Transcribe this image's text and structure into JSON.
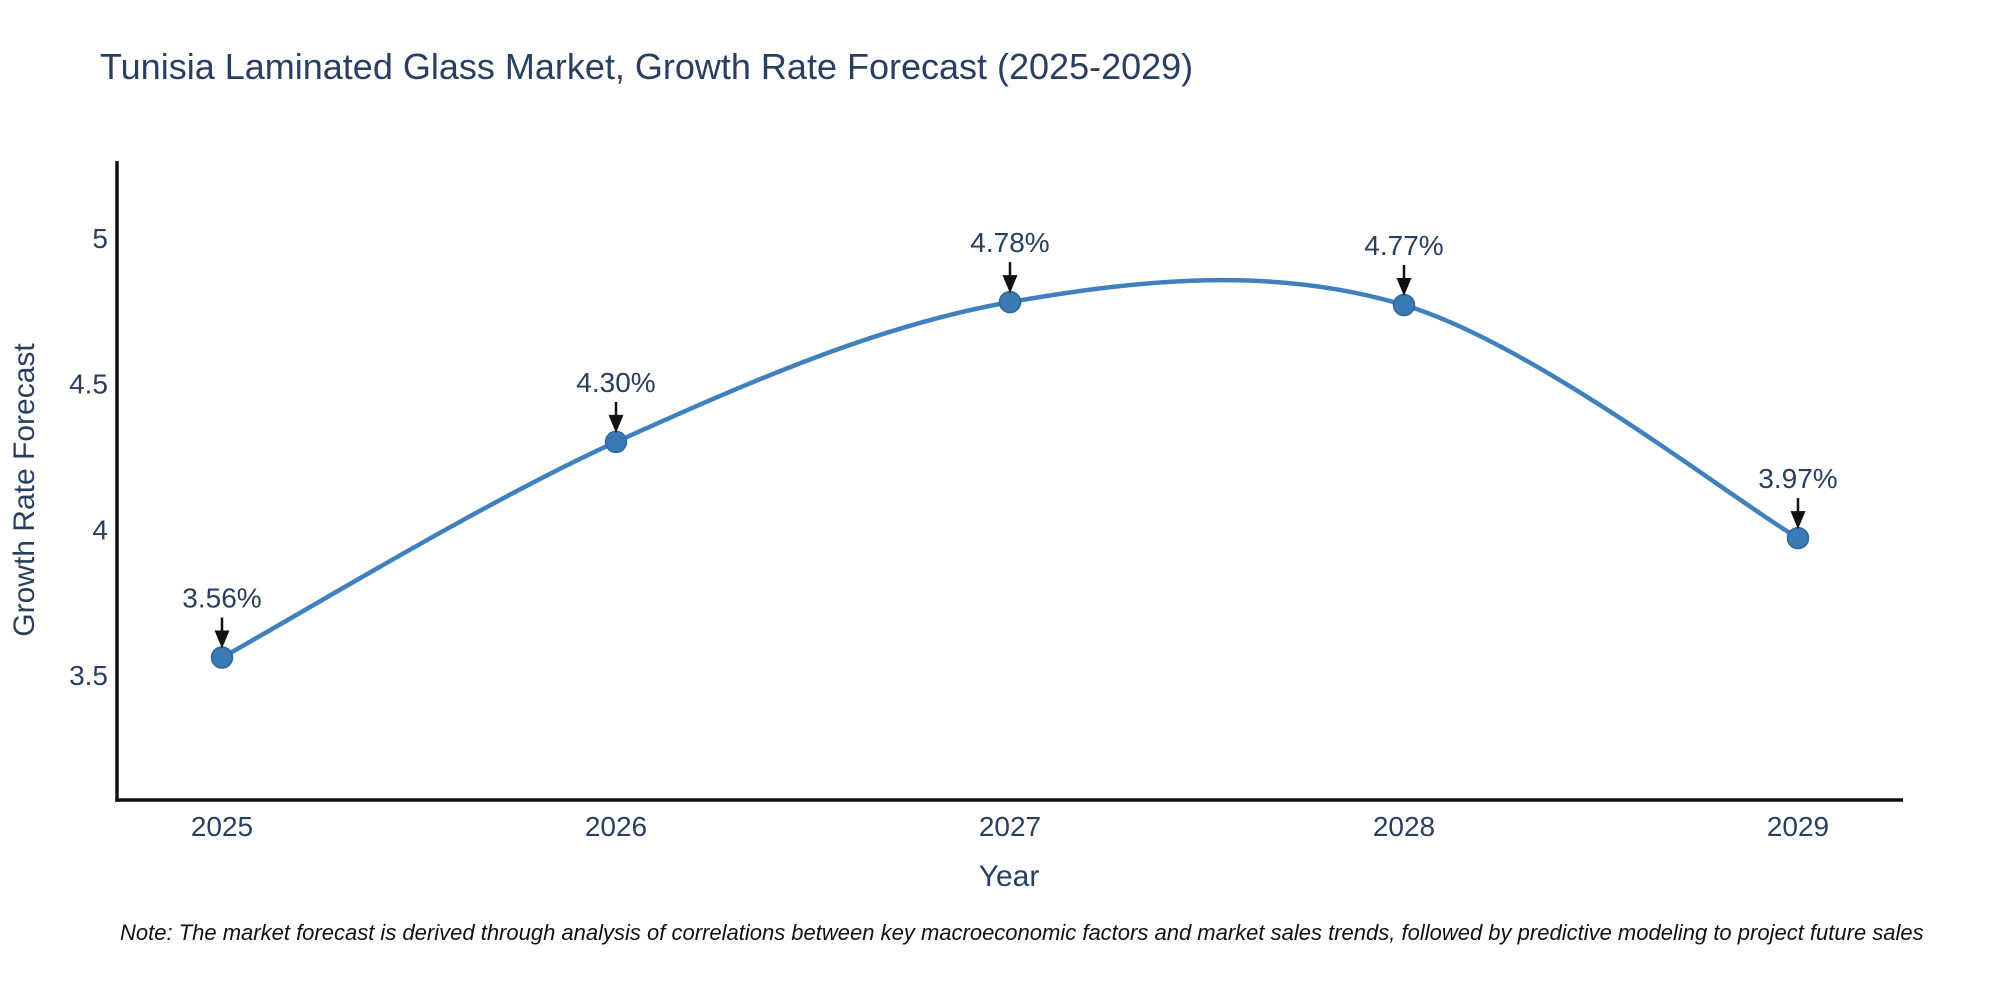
{
  "title": "Tunisia Laminated Glass Market, Growth Rate Forecast (2025-2029)",
  "note": "Note: The market forecast is derived through analysis of correlations between key macroeconomic factors and market sales trends, followed by predictive modeling to project future sales",
  "chart_data": {
    "type": "line",
    "title": "Tunisia Laminated Glass Market, Growth Rate Forecast (2025-2029)",
    "xlabel": "Year",
    "ylabel": "Growth Rate Forecast",
    "categories": [
      "2025",
      "2026",
      "2027",
      "2028",
      "2029"
    ],
    "series": [
      {
        "name": "Growth Rate Forecast",
        "values": [
          3.56,
          4.3,
          4.78,
          4.77,
          3.97
        ],
        "labels": [
          "3.56%",
          "4.30%",
          "4.78%",
          "4.77%",
          "3.97%"
        ]
      }
    ],
    "ytick_values": [
      3.5,
      4,
      4.5,
      5
    ],
    "ytick_labels": [
      "3.5",
      "4",
      "4.5",
      "5"
    ],
    "ylim": [
      3.07,
      5.27
    ],
    "grid": false,
    "legend": false,
    "line_shape": "spline",
    "markers": true,
    "annotations": "value labels with down arrows above each point",
    "colors": {
      "line": "#3f80bd",
      "marker": "#3a79b6",
      "text": "#2a3f5f",
      "axis": "#111111",
      "arrow": "#111111",
      "background": "#ffffff"
    }
  }
}
